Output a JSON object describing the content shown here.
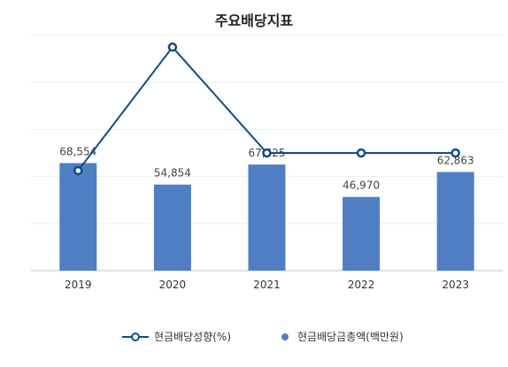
{
  "chart_data": {
    "type": "bar+line",
    "title": "주요배당지표",
    "categories": [
      "2019",
      "2020",
      "2021",
      "2022",
      "2023"
    ],
    "series": [
      {
        "name": "현금배당금총액(백만원)",
        "kind": "bar",
        "values": [
          68554,
          54854,
          67625,
          46970,
          62863
        ],
        "labels": [
          "68,554",
          "54,854",
          "67,625",
          "46,970",
          "62,863"
        ],
        "color": "#4f7ec3"
      },
      {
        "name": "현금배당성향(%)",
        "kind": "line",
        "values": [
          17,
          38,
          20,
          20,
          20
        ],
        "color": "#0f4c8a"
      }
    ],
    "bar_ylim": [
      0,
      150000
    ],
    "line_ylim": [
      0,
      40
    ],
    "grid": true,
    "legend": "bottom-center"
  }
}
